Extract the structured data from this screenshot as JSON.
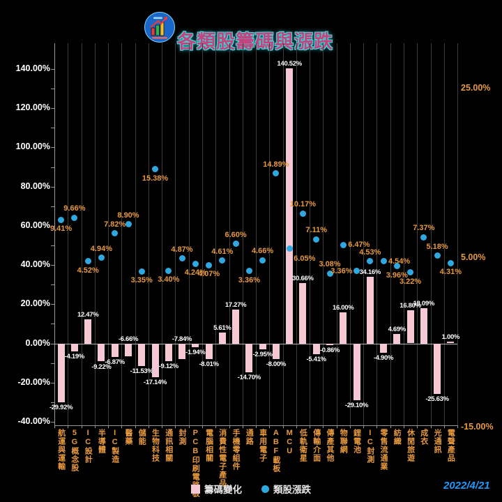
{
  "header": {
    "title": "各類股籌碼與漲跌"
  },
  "footer": {
    "date": "2022/4/21"
  },
  "legend": {
    "bar_label": "籌碼變化",
    "dot_label": "類股漲跌"
  },
  "chart_data": {
    "type": "combo-bar-scatter",
    "title": "各類股籌碼與漲跌",
    "categories": [
      "航運與運輸",
      "5G概念股",
      "IC設計",
      "半導體",
      "IC製造",
      "醫藥",
      "儲能",
      "生物科技",
      "通訊相關",
      "封測",
      "PCB印刷電路板",
      "電腦相關",
      "消費性電子產品",
      "手機零組件",
      "通路",
      "車用電子",
      "ABF載板",
      "MCU",
      "低軌衛星",
      "傳輸介面",
      "傳產其他",
      "物聯網",
      "鋰電池",
      "IC封測",
      "零售流通業",
      "紡織",
      "休閒旅遊",
      "成衣",
      "光通訊",
      "電聲產品"
    ],
    "series": [
      {
        "name": "籌碼變化",
        "type": "bar",
        "axis": "left",
        "color": "#f6c8d4",
        "values": [
          -29.92,
          -4.19,
          12.47,
          -9.22,
          -6.87,
          -6.66,
          -11.53,
          -17.14,
          -9.12,
          -7.84,
          -1.94,
          -8.01,
          5.61,
          17.27,
          -14.7,
          -2.95,
          -8.0,
          140.52,
          30.66,
          -5.41,
          -0.86,
          16.0,
          -29.1,
          34.16,
          -4.9,
          4.69,
          16.8,
          18.09,
          -25.63,
          1.0
        ]
      },
      {
        "name": "類股漲跌",
        "type": "scatter",
        "axis": "right",
        "color": "#2fa8e0",
        "values": [
          9.41,
          9.66,
          4.52,
          4.94,
          7.82,
          8.9,
          3.35,
          15.38,
          3.4,
          4.87,
          4.24,
          4.07,
          4.61,
          6.6,
          3.36,
          4.66,
          14.89,
          6.05,
          10.17,
          7.11,
          3.08,
          6.47,
          3.36,
          4.53,
          4.54,
          3.96,
          3.22,
          7.37,
          5.18,
          4.31
        ]
      }
    ],
    "left_axis": {
      "min": -40,
      "max": 140,
      "tick_step": 20,
      "tick_labels": [
        "140.00%",
        "120.00%",
        "100.00%",
        "80.00%",
        "60.00%",
        "40.00%",
        "20.00%",
        "0.00%",
        "-20.00%",
        "-40.00%"
      ],
      "tick_values": [
        140,
        120,
        100,
        80,
        60,
        40,
        20,
        0,
        -20,
        -40
      ]
    },
    "right_axis": {
      "min": -15,
      "max": 25,
      "tick_labels": [
        "25.00%",
        "5.00%",
        "-15.00%"
      ],
      "tick_values": [
        25,
        5,
        -15
      ]
    },
    "grid": "vertical-only",
    "legend_position": "bottom-center"
  },
  "colors": {
    "background": "#000000",
    "bar": "#f6c8d4",
    "dot": "#2fa8e0",
    "bar_label": "#ffffff",
    "dot_label": "#e89a3e",
    "category_label": "#e89a3e",
    "left_axis_label": "#ffffff",
    "right_axis_label": "#e89a3e",
    "gridline": "#3d3d3d",
    "axis_line": "#9a9a9a",
    "zero_line": "#b5b5b5",
    "title": "#c2457f",
    "title_glow": "#3ddcdc",
    "date": "#1e9aff"
  }
}
